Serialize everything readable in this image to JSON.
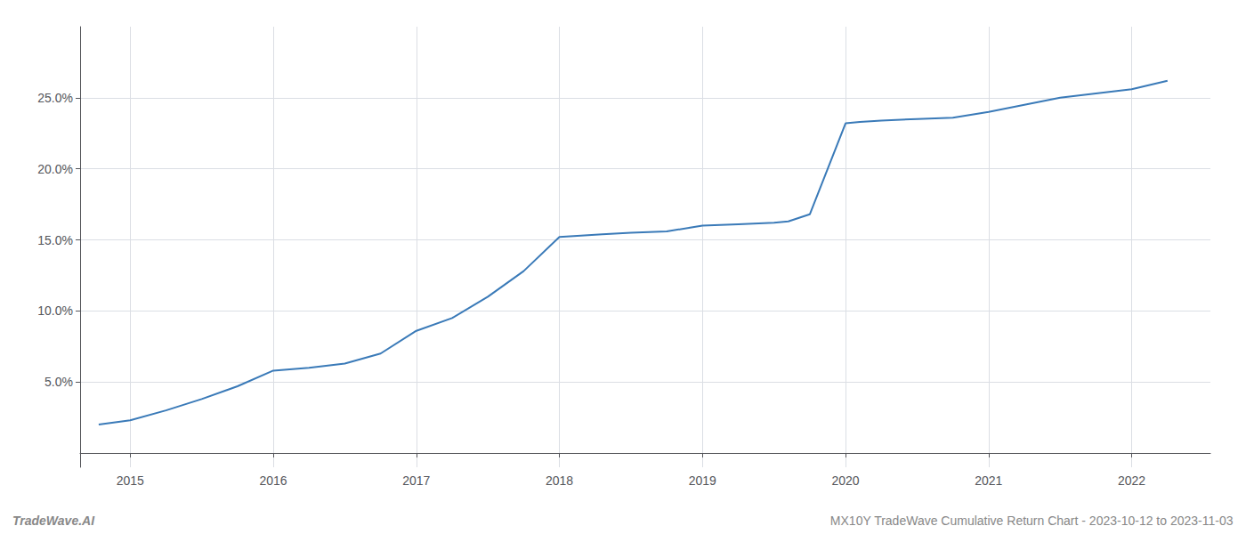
{
  "chart_data": {
    "type": "line",
    "x": [
      2014.78,
      2015.0,
      2015.25,
      2015.5,
      2015.75,
      2016.0,
      2016.25,
      2016.5,
      2016.75,
      2017.0,
      2017.25,
      2017.5,
      2017.75,
      2018.0,
      2018.15,
      2018.3,
      2018.5,
      2018.75,
      2019.0,
      2019.25,
      2019.5,
      2019.6,
      2019.75,
      2020.0,
      2020.1,
      2020.25,
      2020.5,
      2020.75,
      2021.0,
      2021.25,
      2021.5,
      2021.75,
      2022.0,
      2022.25
    ],
    "values": [
      0.02,
      0.023,
      0.03,
      0.038,
      0.047,
      0.058,
      0.06,
      0.063,
      0.07,
      0.086,
      0.095,
      0.11,
      0.128,
      0.152,
      0.153,
      0.154,
      0.155,
      0.156,
      0.16,
      0.161,
      0.162,
      0.163,
      0.168,
      0.232,
      0.233,
      0.234,
      0.235,
      0.236,
      0.24,
      0.245,
      0.25,
      0.253,
      0.256,
      0.262
    ],
    "color": "#3a7ab8",
    "xlim": [
      2014.65,
      2022.55
    ],
    "ylim": [
      -0.01,
      0.3
    ],
    "xticks": [
      2015,
      2016,
      2017,
      2018,
      2019,
      2020,
      2021,
      2022
    ],
    "yticks": [
      {
        "value": 0.05,
        "label": "5.0%"
      },
      {
        "value": 0.1,
        "label": "10.0%"
      },
      {
        "value": 0.15,
        "label": "15.0%"
      },
      {
        "value": 0.2,
        "label": "20.0%"
      },
      {
        "value": 0.25,
        "label": "25.0%"
      }
    ],
    "grid": true,
    "annotations": [
      "TradeWave.AI",
      "MX10Y TradeWave Cumulative Return Chart - 2023-10-12 to 2023-11-03"
    ]
  }
}
